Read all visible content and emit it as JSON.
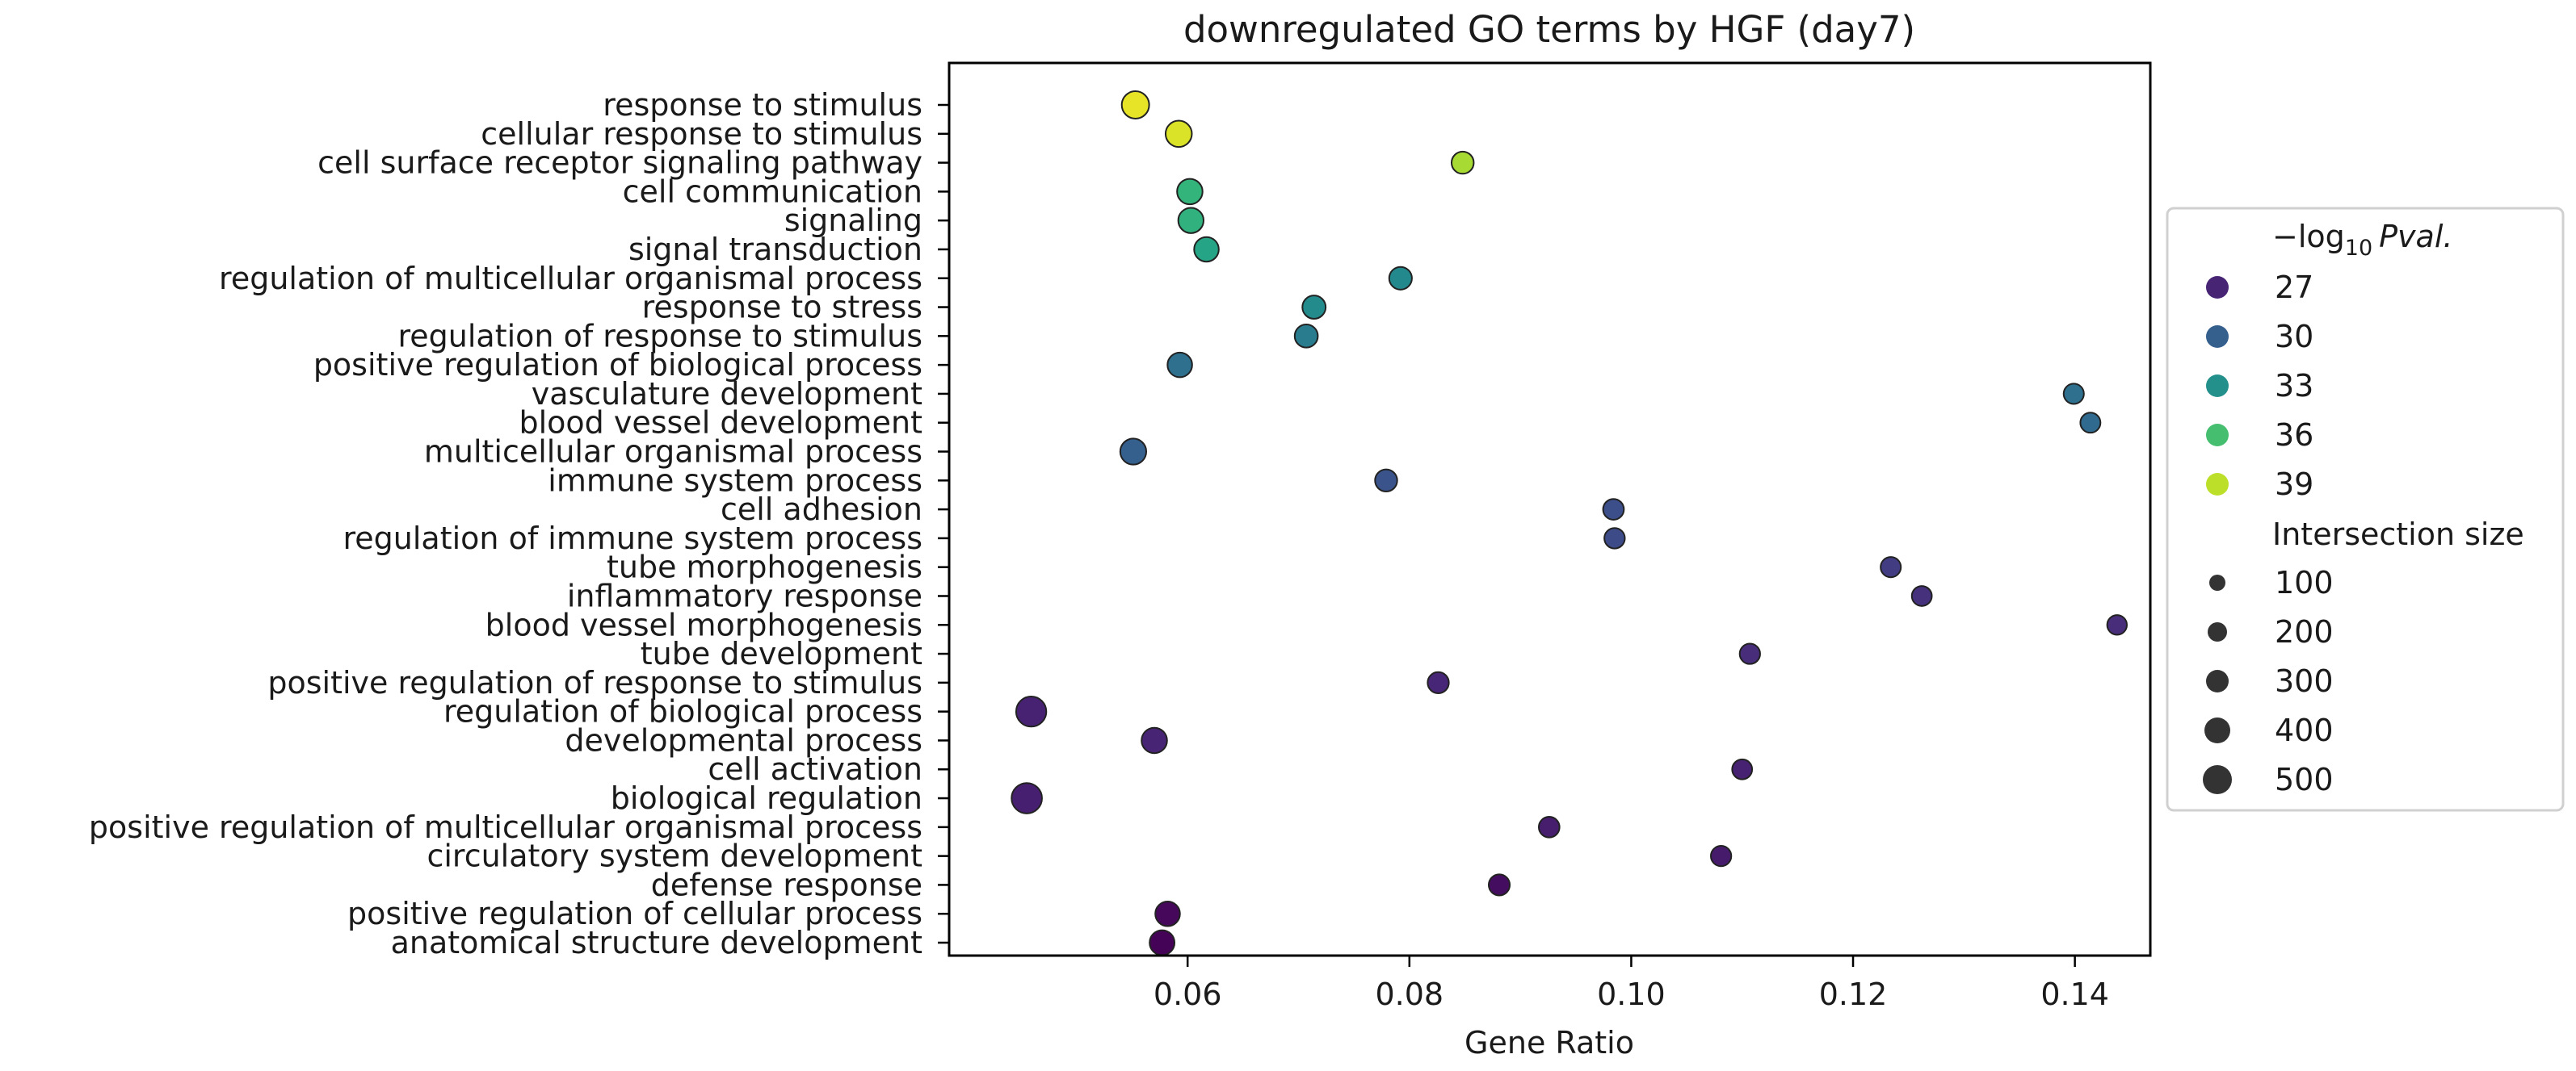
{
  "chart_data": {
    "type": "scatter",
    "title": "downregulated GO terms by HGF (day7)",
    "xlabel": "Gene Ratio",
    "ylabel": "",
    "xlim": [
      0.0385,
      0.1468
    ],
    "x_ticks": [
      0.06,
      0.08,
      0.1,
      0.12,
      0.14
    ],
    "x_tick_labels": [
      "0.06",
      "0.08",
      "0.10",
      "0.12",
      "0.14"
    ],
    "grid": false,
    "legend": {
      "position": "right",
      "color_title": "−log10 Pval.",
      "color_title_main": "−log",
      "color_title_sub": "10",
      "color_title_italic": "Pval.",
      "color_entries": [
        {
          "label": "27",
          "value": 27
        },
        {
          "label": "30",
          "value": 30
        },
        {
          "label": "33",
          "value": 33
        },
        {
          "label": "36",
          "value": 36
        },
        {
          "label": "39",
          "value": 39
        }
      ],
      "size_title": "Intersection size",
      "size_entries": [
        {
          "label": "100",
          "value": 100
        },
        {
          "label": "200",
          "value": 200
        },
        {
          "label": "300",
          "value": 300
        },
        {
          "label": "400",
          "value": 400
        },
        {
          "label": "500",
          "value": 500
        }
      ]
    },
    "colorscale": {
      "name": "viridis",
      "min": 25.5,
      "max": 40.5,
      "stops": [
        "#440154",
        "#482878",
        "#3e4a89",
        "#31688e",
        "#26828e",
        "#1f9e89",
        "#35b779",
        "#6ece58",
        "#b5de2b",
        "#fde725"
      ]
    },
    "size_range": [
      50,
      550
    ],
    "categories": [
      "response to stimulus",
      "cellular response to stimulus",
      "cell surface receptor signaling pathway",
      "cell communication",
      "signaling",
      "signal transduction",
      "regulation of multicellular organismal process",
      "response to stress",
      "regulation of response to stimulus",
      "positive regulation of biological process",
      "vasculature development",
      "blood vessel development",
      "multicellular organismal process",
      "immune system process",
      "cell adhesion",
      "regulation of immune system process",
      "tube morphogenesis",
      "inflammatory response",
      "blood vessel morphogenesis",
      "tube development",
      "positive regulation of response to stimulus",
      "regulation of biological process",
      "developmental process",
      "cell activation",
      "biological regulation",
      "positive regulation of multicellular organismal process",
      "circulatory system development",
      "defense response",
      "positive regulation of cellular process",
      "anatomical structure development"
    ],
    "points": [
      {
        "term": "response to stimulus",
        "x": 0.0553,
        "neglog10p": 40.0,
        "size": 400
      },
      {
        "term": "cellular response to stimulus",
        "x": 0.0592,
        "neglog10p": 39.7,
        "size": 360
      },
      {
        "term": "cell surface receptor signaling pathway",
        "x": 0.0848,
        "neglog10p": 38.5,
        "size": 210
      },
      {
        "term": "cell communication",
        "x": 0.0602,
        "neglog10p": 35.3,
        "size": 330
      },
      {
        "term": "signaling",
        "x": 0.0603,
        "neglog10p": 35.1,
        "size": 325
      },
      {
        "term": "signal transduction",
        "x": 0.0617,
        "neglog10p": 34.3,
        "size": 300
      },
      {
        "term": "regulation of multicellular organismal process",
        "x": 0.0792,
        "neglog10p": 32.6,
        "size": 230
      },
      {
        "term": "response to stress",
        "x": 0.0714,
        "neglog10p": 32.7,
        "size": 250
      },
      {
        "term": "regulation of response to stimulus",
        "x": 0.0707,
        "neglog10p": 31.8,
        "size": 245
      },
      {
        "term": "positive regulation of biological process",
        "x": 0.0593,
        "neglog10p": 31.0,
        "size": 300
      },
      {
        "term": "vasculature development",
        "x": 0.1399,
        "neglog10p": 31.0,
        "size": 140
      },
      {
        "term": "blood vessel development",
        "x": 0.1414,
        "neglog10p": 30.6,
        "size": 135
      },
      {
        "term": "multicellular organismal process",
        "x": 0.0551,
        "neglog10p": 30.0,
        "size": 350
      },
      {
        "term": "immune system process",
        "x": 0.0779,
        "neglog10p": 29.4,
        "size": 210
      },
      {
        "term": "cell adhesion",
        "x": 0.0984,
        "neglog10p": 29.1,
        "size": 160
      },
      {
        "term": "regulation of immune system process",
        "x": 0.0985,
        "neglog10p": 28.9,
        "size": 150
      },
      {
        "term": "tube morphogenesis",
        "x": 0.1234,
        "neglog10p": 28.2,
        "size": 140
      },
      {
        "term": "inflammatory response",
        "x": 0.1262,
        "neglog10p": 27.6,
        "size": 130
      },
      {
        "term": "blood vessel morphogenesis",
        "x": 0.1438,
        "neglog10p": 27.4,
        "size": 120
      },
      {
        "term": "tube development",
        "x": 0.1107,
        "neglog10p": 27.4,
        "size": 145
      },
      {
        "term": "positive regulation of response to stimulus",
        "x": 0.0826,
        "neglog10p": 27.1,
        "size": 175
      },
      {
        "term": "regulation of biological process",
        "x": 0.0459,
        "neglog10p": 26.9,
        "size": 500
      },
      {
        "term": "developmental process",
        "x": 0.057,
        "neglog10p": 27.0,
        "size": 330
      },
      {
        "term": "cell activation",
        "x": 0.11,
        "neglog10p": 26.9,
        "size": 130
      },
      {
        "term": "biological regulation",
        "x": 0.0455,
        "neglog10p": 26.8,
        "size": 510
      },
      {
        "term": "positive regulation of multicellular organismal process",
        "x": 0.0926,
        "neglog10p": 26.7,
        "size": 155
      },
      {
        "term": "circulatory system development",
        "x": 0.1081,
        "neglog10p": 26.6,
        "size": 145
      },
      {
        "term": "defense response",
        "x": 0.0881,
        "neglog10p": 26.0,
        "size": 170
      },
      {
        "term": "positive regulation of cellular process",
        "x": 0.0582,
        "neglog10p": 25.8,
        "size": 300
      },
      {
        "term": "anatomical structure development",
        "x": 0.0577,
        "neglog10p": 25.6,
        "size": 310
      }
    ]
  }
}
